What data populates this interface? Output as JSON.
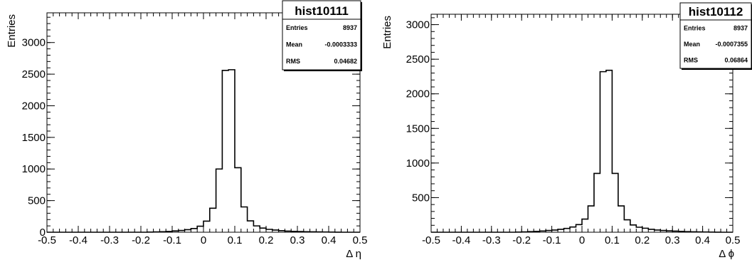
{
  "chart_data": [
    {
      "type": "bar",
      "title": "hist10111",
      "xlabel": "Δ η",
      "ylabel": "Entries",
      "xlim": [
        -0.5,
        0.5
      ],
      "ylim": [
        0,
        3470
      ],
      "x_ticks": [
        -0.5,
        -0.4,
        -0.3,
        -0.2,
        -0.1,
        0,
        0.1,
        0.2,
        0.3,
        0.4,
        0.5
      ],
      "x_tick_labels": [
        "-0.5",
        "-0.4",
        "-0.3",
        "-0.2",
        "-0.1",
        "0",
        "0.1",
        "0.2",
        "0.3",
        "0.4",
        "0.5"
      ],
      "y_ticks": [
        0,
        500,
        1000,
        1500,
        2000,
        2500,
        3000
      ],
      "y_tick_labels": [
        "0",
        "500",
        "1000",
        "1500",
        "2000",
        "2500",
        "3000"
      ],
      "bin_width": 0.02,
      "bin_edges_start": -0.5,
      "values": [
        0,
        0,
        0,
        0,
        0,
        0,
        0,
        0,
        0,
        0,
        0,
        0,
        0,
        0,
        0,
        0,
        2,
        5,
        8,
        12,
        20,
        28,
        40,
        58,
        95,
        175,
        380,
        1000,
        2560,
        2570,
        1020,
        400,
        180,
        100,
        65,
        45,
        35,
        25,
        18,
        14,
        10,
        8,
        6,
        5,
        3,
        2,
        1,
        0,
        0,
        0
      ],
      "stats": [
        {
          "label": "Entries",
          "value": "8937"
        },
        {
          "label": "Mean",
          "value": "-0.0003333"
        },
        {
          "label": "RMS",
          "value": "0.04682"
        }
      ],
      "grid": false,
      "legend": "top-right"
    },
    {
      "type": "bar",
      "title": "hist10112",
      "xlabel": "Δ ϕ",
      "ylabel": "Entries",
      "xlim": [
        -0.5,
        0.5
      ],
      "ylim": [
        0,
        3150
      ],
      "x_ticks": [
        -0.5,
        -0.4,
        -0.3,
        -0.2,
        -0.1,
        0,
        0.1,
        0.2,
        0.3,
        0.4,
        0.5
      ],
      "x_tick_labels": [
        "-0.5",
        "-0.4",
        "-0.3",
        "-0.2",
        "-0.1",
        "0",
        "0.1",
        "0.2",
        "0.3",
        "0.4",
        "0.5"
      ],
      "y_ticks": [
        500,
        1000,
        1500,
        2000,
        2500,
        3000
      ],
      "y_tick_labels": [
        "500",
        "1000",
        "1500",
        "2000",
        "2500",
        "3000"
      ],
      "bin_width": 0.02,
      "bin_edges_start": -0.5,
      "values": [
        0,
        0,
        0,
        0,
        0,
        0,
        0,
        0,
        0,
        0,
        0,
        0,
        0,
        0,
        2,
        4,
        8,
        12,
        18,
        25,
        32,
        42,
        55,
        75,
        110,
        190,
        380,
        850,
        2320,
        2340,
        850,
        380,
        180,
        105,
        72,
        58,
        42,
        32,
        25,
        20,
        16,
        12,
        9,
        6,
        4,
        3,
        2,
        1,
        0,
        0
      ],
      "stats": [
        {
          "label": "Entries",
          "value": "8937"
        },
        {
          "label": "Mean",
          "value": "-0.0007355"
        },
        {
          "label": "RMS",
          "value": "0.06864"
        }
      ],
      "grid": false,
      "legend": "top-right"
    }
  ]
}
